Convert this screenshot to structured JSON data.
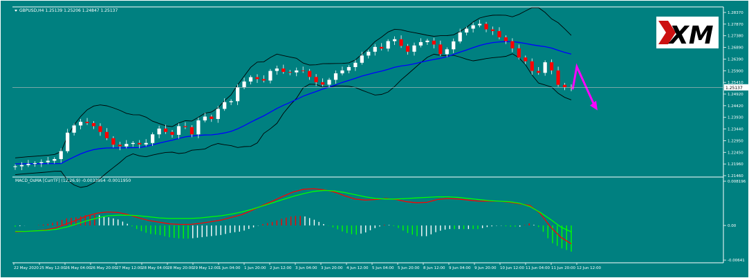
{
  "header": {
    "main_label": "GBPUSD,H4  1.25139 1.25206 1.24847 1.25137",
    "macd_label": "MACD_OsMA [CurrTF] (12,26,9) -0.0033954 -0.0011950"
  },
  "logo": {
    "text": "XM"
  },
  "colors": {
    "background": "#008080",
    "bull_candle": "#ffffff",
    "bear_candle": "#ff0000",
    "bollinger": "#000000",
    "ma": "#0000ff",
    "macd_line": "#ff0000",
    "signal_line": "#00ff00",
    "hist_up_pos": "#ff0000",
    "hist_down_pos": "#ffffff",
    "hist_up_neg": "#00ff00",
    "hist_down_neg": "#ffffff",
    "arrow": "#ff00ff",
    "grid_label": "#ffffff"
  },
  "chart_data": [
    {
      "type": "candlestick",
      "symbol": "GBPUSD",
      "timeframe": "H4",
      "ohlc_last": {
        "open": 1.25139,
        "high": 1.25206,
        "low": 1.24847,
        "close": 1.25137
      },
      "ylim": [
        1.2146,
        1.2837
      ],
      "y_ticks": [
        "1.28370",
        "1.27870",
        "1.27380",
        "1.26890",
        "1.26390",
        "1.25900",
        "1.25410",
        "1.24920",
        "1.24420",
        "1.23930",
        "1.23440",
        "1.22950",
        "1.22450",
        "1.21960",
        "1.21460"
      ],
      "current_price_label": "1.25137",
      "x_labels": [
        "22 May 2020",
        "25 May 12:00",
        "26 May 04:00",
        "26 May 20:00",
        "27 May 12:00",
        "28 May 04:00",
        "28 May 20:00",
        "29 May 12:00",
        "1 Jun 04:00",
        "1 Jun 20:00",
        "2 Jun 12:00",
        "3 Jun 04:00",
        "3 Jun 20:00",
        "4 Jun 12:00",
        "5 Jun 04:00",
        "5 Jun 20:00",
        "8 Jun 12:00",
        "9 Jun 04:00",
        "9 Jun 20:00",
        "10 Jun 12:00",
        "11 Jun 04:00",
        "11 Jun 20:00",
        "12 Jun 12:00"
      ],
      "candles_close": [
        1.2185,
        1.219,
        1.2195,
        1.2198,
        1.2202,
        1.2208,
        1.2215,
        1.2248,
        1.2325,
        1.2355,
        1.237,
        1.2365,
        1.2352,
        1.2328,
        1.2302,
        1.2275,
        1.2268,
        1.2278,
        1.2282,
        1.2276,
        1.2282,
        1.2318,
        1.2342,
        1.2328,
        1.2316,
        1.2352,
        1.2348,
        1.2318,
        1.2376,
        1.2392,
        1.2382,
        1.2424,
        1.2452,
        1.2456,
        1.2514,
        1.2538,
        1.2556,
        1.2548,
        1.2542,
        1.2582,
        1.2592,
        1.2578,
        1.2576,
        1.2584,
        1.2582,
        1.2557,
        1.2535,
        1.2525,
        1.2545,
        1.2572,
        1.2584,
        1.2598,
        1.2616,
        1.2646,
        1.2662,
        1.2682,
        1.2675,
        1.2706,
        1.2714,
        1.2686,
        1.2662,
        1.2688,
        1.2702,
        1.2708,
        1.2692,
        1.2652,
        1.2672,
        1.2705,
        1.2742,
        1.2758,
        1.2772,
        1.2778,
        1.2755,
        1.2748,
        1.2722,
        1.2706,
        1.2676,
        1.2638,
        1.2622,
        1.2582,
        1.2574,
        1.2618,
        1.2584,
        1.2524,
        1.2514,
        1.25137
      ],
      "series": [
        {
          "name": "Bollinger Bands",
          "color": "#000000"
        },
        {
          "name": "Moving Average",
          "color": "#0000ff"
        }
      ]
    },
    {
      "type": "line",
      "label": "MACD_OsMA [CurrTF] (12,26,9) -0.0033954 -0.0011950",
      "ylim": [
        -0.0064,
        0.0082
      ],
      "y_ticks": [
        "0.008196",
        "0.00",
        "-0.00641"
      ],
      "series": [
        {
          "name": "MACD",
          "color": "#ff0000",
          "values": [
            -0.0012,
            -0.0011,
            -0.001,
            -0.0008,
            -0.0004,
            0.0003,
            0.001,
            0.0018,
            0.0023,
            0.0025,
            0.0024,
            0.002,
            0.0014,
            0.0009,
            0.0006,
            0.0003,
            0.0002,
            0.0002,
            0.0004,
            0.0007,
            0.001,
            0.0015,
            0.002,
            0.0028,
            0.0037,
            0.0045,
            0.0054,
            0.0062,
            0.0067,
            0.0068,
            0.0066,
            0.0062,
            0.0055,
            0.0049,
            0.0047,
            0.0048,
            0.005,
            0.0048,
            0.0044,
            0.0042,
            0.0043,
            0.0048,
            0.005,
            0.0049,
            0.0047,
            0.0045,
            0.0045,
            0.0045,
            0.0043,
            0.004,
            0.0037,
            0.0022,
            -0.0003,
            -0.0022,
            -0.0034
          ]
        },
        {
          "name": "Signal",
          "color": "#00ff00",
          "values": [
            -0.0011,
            -0.0011,
            -0.001,
            -0.0009,
            -0.0007,
            -0.0003,
            0.0003,
            0.0009,
            0.0014,
            0.0018,
            0.0019,
            0.0019,
            0.0018,
            0.0016,
            0.0014,
            0.0013,
            0.0013,
            0.0013,
            0.0014,
            0.0016,
            0.0018,
            0.0021,
            0.0025,
            0.003,
            0.0036,
            0.0042,
            0.0048,
            0.0054,
            0.0059,
            0.0063,
            0.0065,
            0.0064,
            0.0061,
            0.0057,
            0.0053,
            0.005,
            0.0049,
            0.0049,
            0.005,
            0.0051,
            0.0052,
            0.0053,
            0.0053,
            0.0052,
            0.005,
            0.0048,
            0.0046,
            0.0045,
            0.0044,
            0.0041,
            0.0035,
            0.0024,
            0.0011,
            -0.0003,
            -0.0012
          ]
        }
      ]
    }
  ]
}
